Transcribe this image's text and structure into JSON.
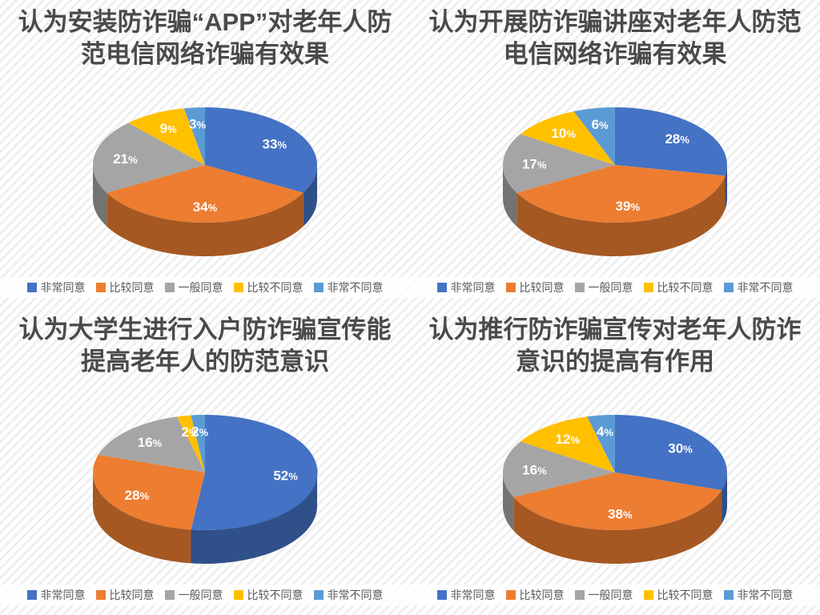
{
  "style": {
    "slice_colors": [
      "#4472c4",
      "#ed7d31",
      "#a5a5a5",
      "#ffc000",
      "#5b9bd5"
    ],
    "slice_label_color": "#ffffff",
    "title_color": "#4a4a4a",
    "legend_text_color": "#595959",
    "background_stripe_color": "#efefef"
  },
  "chart_data": [
    {
      "type": "pie",
      "pie_style": "3d",
      "title": "认为安装防诈骗“APP”对老年人防范电信网络诈骗有效果",
      "title_lines": [
        "认为安装防诈骗“APP”对老年人防",
        "范电信网络诈骗有效果"
      ],
      "categories": [
        "非常同意",
        "比较同意",
        "一般同意",
        "比较不同意",
        "非常不同意"
      ],
      "values": [
        33,
        34,
        21,
        9,
        3
      ],
      "labels": [
        "33%",
        "34%",
        "21%",
        "9%",
        "3%"
      ],
      "legend_position": "bottom"
    },
    {
      "type": "pie",
      "pie_style": "3d",
      "title": "认为开展防诈骗讲座对老年人防范电信网络诈骗有效果",
      "title_lines": [
        "认为开展防诈骗讲座对老年人防范",
        "电信网络诈骗有效果"
      ],
      "categories": [
        "非常同意",
        "比较同意",
        "一般同意",
        "比较不同意",
        "非常不同意"
      ],
      "values": [
        28,
        39,
        17,
        10,
        6
      ],
      "labels": [
        "28%",
        "39%",
        "17%",
        "10%",
        "6%"
      ],
      "legend_position": "bottom"
    },
    {
      "type": "pie",
      "pie_style": "3d",
      "title": "认为大学生进行入户防诈骗宣传能提高老年人的防范意识",
      "title_lines": [
        "认为大学生进行入户防诈骗宣传能",
        "提高老年人的防范意识"
      ],
      "categories": [
        "非常同意",
        "比较同意",
        "一般同意",
        "比较不同意",
        "非常不同意"
      ],
      "values": [
        52,
        28,
        16,
        2,
        2
      ],
      "labels": [
        "52%",
        "28%",
        "16%",
        "2%",
        "2%"
      ],
      "legend_position": "bottom"
    },
    {
      "type": "pie",
      "pie_style": "3d",
      "title": "认为推行防诈骗宣传对老年人防诈意识的提高有作用",
      "title_lines": [
        "认为推行防诈骗宣传对老年人防诈",
        "意识的提高有作用"
      ],
      "categories": [
        "非常同意",
        "比较同意",
        "一般同意",
        "比较不同意",
        "非常不同意"
      ],
      "values": [
        30,
        38,
        16,
        12,
        4
      ],
      "labels": [
        "30%",
        "38%",
        "16%",
        "12%",
        "4%"
      ],
      "legend_position": "bottom"
    }
  ]
}
